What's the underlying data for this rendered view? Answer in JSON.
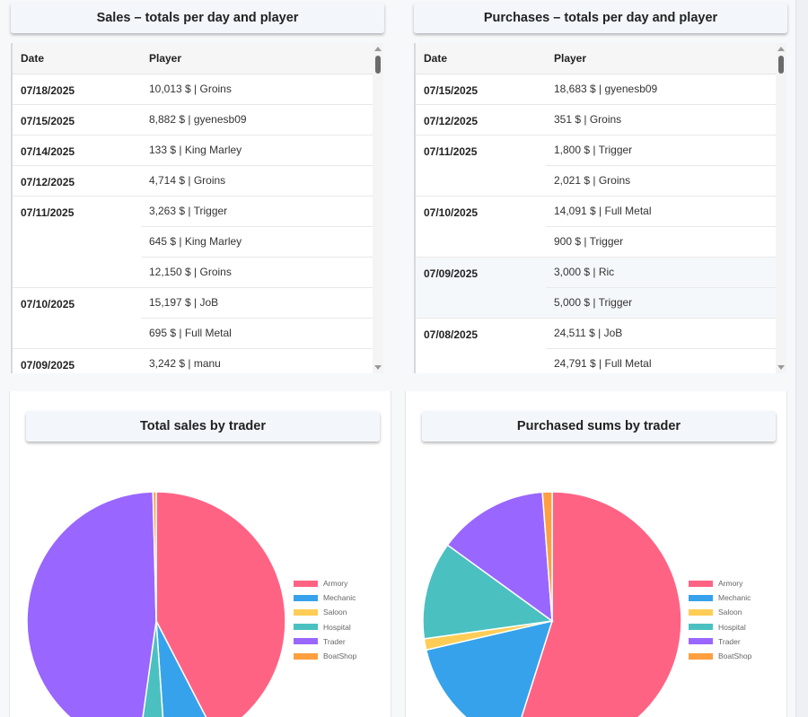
{
  "sales": {
    "title": "Sales – totals per day and player",
    "columns": {
      "date": "Date",
      "player": "Player"
    },
    "groups": [
      {
        "date": "07/18/2025",
        "rows": [
          "10,013 $ | Groins"
        ]
      },
      {
        "date": "07/15/2025",
        "rows": [
          "8,882 $ | gyenesb09"
        ]
      },
      {
        "date": "07/14/2025",
        "rows": [
          "133 $ | King Marley"
        ]
      },
      {
        "date": "07/12/2025",
        "rows": [
          "4,714 $ | Groins"
        ]
      },
      {
        "date": "07/11/2025",
        "rows": [
          "3,263 $ | Trigger",
          "645 $ | King Marley",
          "12,150 $ | Groins"
        ]
      },
      {
        "date": "07/10/2025",
        "rows": [
          "15,197 $ | JoB",
          "695 $ | Full Metal"
        ]
      },
      {
        "date": "07/09/2025",
        "rows": [
          "3,242 $ | manu"
        ]
      }
    ]
  },
  "purchases": {
    "title": "Purchases – totals per day and player",
    "columns": {
      "date": "Date",
      "player": "Player"
    },
    "groups": [
      {
        "date": "07/15/2025",
        "rows": [
          "18,683 $ | gyenesb09"
        ]
      },
      {
        "date": "07/12/2025",
        "rows": [
          "351 $ | Groins"
        ]
      },
      {
        "date": "07/11/2025",
        "rows": [
          "1,800 $ | Trigger",
          "2,021 $ | Groins"
        ]
      },
      {
        "date": "07/10/2025",
        "rows": [
          "14,091 $ | Full Metal",
          "900 $ | Trigger"
        ]
      },
      {
        "date": "07/09/2025",
        "rows": [
          "3,000 $ | Ric",
          "5,000 $ | Trigger"
        ],
        "highlight": true
      },
      {
        "date": "07/08/2025",
        "rows": [
          "24,511 $ | JoB",
          "24,791 $ | Full Metal"
        ]
      }
    ]
  },
  "chart_data": [
    {
      "type": "pie",
      "title": "Total sales by trader",
      "labels": [
        "Armory",
        "Mechanic",
        "Saloon",
        "Hospital",
        "Trader",
        "BoatShop"
      ],
      "colors": [
        "#ff6384",
        "#36a2eb",
        "#ffcd56",
        "#4bc0c0",
        "#9966ff",
        "#ff9f40"
      ],
      "values": [
        42.4,
        6.5,
        0,
        3.3,
        47.4,
        0.4
      ]
    },
    {
      "type": "pie",
      "title": "Purchased sums by trader",
      "labels": [
        "Armory",
        "Mechanic",
        "Saloon",
        "Hospital",
        "Trader",
        "BoatShop"
      ],
      "colors": [
        "#ff6384",
        "#36a2eb",
        "#ffcd56",
        "#4bc0c0",
        "#9966ff",
        "#ff9f40"
      ],
      "values": [
        54.9,
        16.5,
        1.4,
        12.2,
        13.8,
        1.2
      ]
    }
  ]
}
